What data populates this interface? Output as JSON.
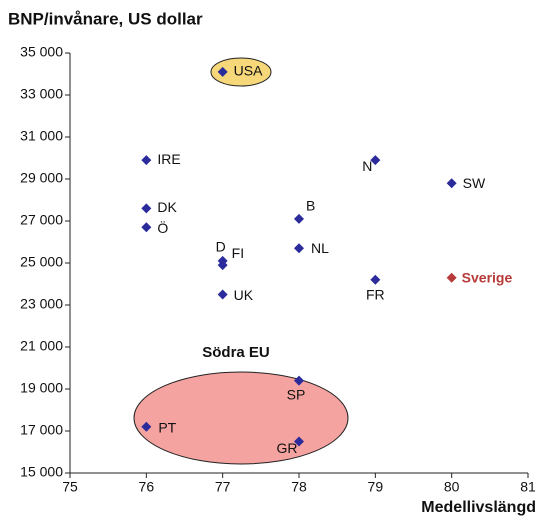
{
  "chart_data": {
    "type": "scatter",
    "title": "BNP/invånare, US dollar",
    "x_label": "Medellivslängd",
    "annotation": "Södra EU",
    "labels": [
      "USA",
      "IRE",
      "N",
      "SW",
      "DK",
      "Ö",
      "B",
      "D",
      "FI",
      "NL",
      "FR",
      "Sverige",
      "UK",
      "SP",
      "PT",
      "GR"
    ],
    "x": [
      77,
      76,
      79,
      80,
      76,
      76,
      78,
      77,
      77,
      78,
      79,
      80,
      77,
      78,
      76,
      78
    ],
    "values": [
      34100,
      29900,
      29900,
      28800,
      27600,
      26700,
      27100,
      25100,
      24900,
      25700,
      24200,
      24300,
      23500,
      19400,
      17200,
      16500
    ],
    "colors": [
      "#2b2b9b",
      "#2b2b9b",
      "#2b2b9b",
      "#2b2b9b",
      "#2b2b9b",
      "#2b2b9b",
      "#2b2b9b",
      "#2b2b9b",
      "#2b2b9b",
      "#2b2b9b",
      "#2b2b9b",
      "#b83a3a",
      "#2b2b9b",
      "#2b2b9b",
      "#2b2b9b",
      "#2b2b9b"
    ],
    "xlim": [
      75,
      81
    ],
    "xticks": [
      75,
      76,
      77,
      78,
      79,
      80,
      81
    ],
    "ylim": [
      15000,
      35000
    ],
    "yticks": [
      {
        "value": 15000,
        "label": "15 000"
      },
      {
        "value": 17000,
        "label": "17 000"
      },
      {
        "value": 19000,
        "label": "19 000"
      },
      {
        "value": 21000,
        "label": "21 000"
      },
      {
        "value": 23000,
        "label": "23 000"
      },
      {
        "value": 25000,
        "label": "25 000"
      },
      {
        "value": 27000,
        "label": "27 000"
      },
      {
        "value": 29000,
        "label": "29 000"
      },
      {
        "value": 31000,
        "label": "31 000"
      },
      {
        "value": 33000,
        "label": "33 000"
      },
      {
        "value": 35000,
        "label": "35 000"
      }
    ],
    "grid": false
  }
}
